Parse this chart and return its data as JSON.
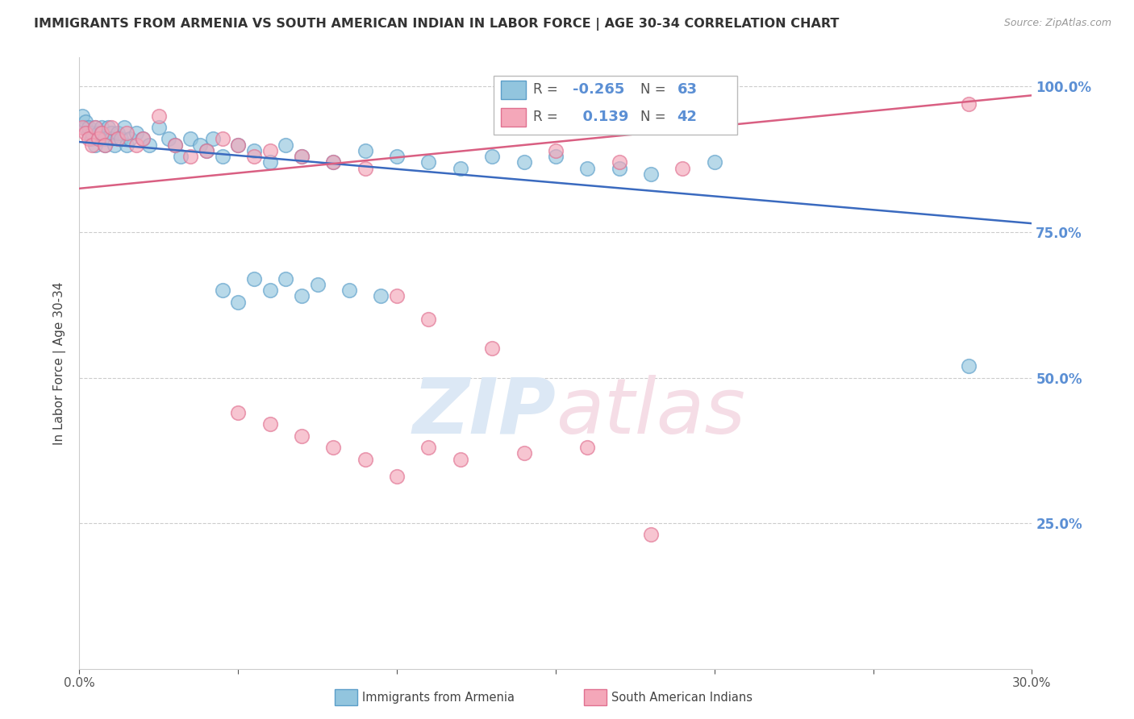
{
  "title": "IMMIGRANTS FROM ARMENIA VS SOUTH AMERICAN INDIAN IN LABOR FORCE | AGE 30-34 CORRELATION CHART",
  "source": "Source: ZipAtlas.com",
  "ylabel": "In Labor Force | Age 30-34",
  "xlim": [
    0.0,
    0.3
  ],
  "ylim": [
    0.0,
    1.05
  ],
  "xtick_positions": [
    0.0,
    0.05,
    0.1,
    0.15,
    0.2,
    0.25,
    0.3
  ],
  "xticklabels": [
    "0.0%",
    "",
    "",
    "",
    "",
    "",
    "30.0%"
  ],
  "ytick_positions": [
    0.25,
    0.5,
    0.75,
    1.0
  ],
  "ytick_labels": [
    "25.0%",
    "50.0%",
    "75.0%",
    "100.0%"
  ],
  "armenia_color": "#92c5de",
  "armenia_edge": "#5b9ec9",
  "pink_color": "#f4a7b9",
  "pink_edge": "#e07090",
  "blue_line_color": "#3a6abf",
  "pink_line_color": "#d95f82",
  "grid_color": "#cccccc",
  "background": "#ffffff",
  "ytick_color": "#5b8fd4",
  "armenia_x": [
    0.001,
    0.002,
    0.002,
    0.003,
    0.003,
    0.004,
    0.004,
    0.005,
    0.005,
    0.006,
    0.006,
    0.007,
    0.007,
    0.008,
    0.008,
    0.009,
    0.01,
    0.01,
    0.011,
    0.012,
    0.013,
    0.014,
    0.015,
    0.016,
    0.018,
    0.02,
    0.022,
    0.025,
    0.028,
    0.03,
    0.032,
    0.035,
    0.038,
    0.04,
    0.042,
    0.045,
    0.05,
    0.055,
    0.06,
    0.065,
    0.07,
    0.08,
    0.09,
    0.1,
    0.11,
    0.12,
    0.13,
    0.14,
    0.15,
    0.16,
    0.045,
    0.05,
    0.055,
    0.06,
    0.065,
    0.07,
    0.075,
    0.085,
    0.095,
    0.17,
    0.18,
    0.28,
    0.2
  ],
  "armenia_y": [
    0.95,
    0.93,
    0.94,
    0.92,
    0.93,
    0.91,
    0.92,
    0.93,
    0.9,
    0.92,
    0.91,
    0.93,
    0.92,
    0.91,
    0.9,
    0.93,
    0.92,
    0.91,
    0.9,
    0.92,
    0.91,
    0.93,
    0.9,
    0.91,
    0.92,
    0.91,
    0.9,
    0.93,
    0.91,
    0.9,
    0.88,
    0.91,
    0.9,
    0.89,
    0.91,
    0.88,
    0.9,
    0.89,
    0.87,
    0.9,
    0.88,
    0.87,
    0.89,
    0.88,
    0.87,
    0.86,
    0.88,
    0.87,
    0.88,
    0.86,
    0.65,
    0.63,
    0.67,
    0.65,
    0.67,
    0.64,
    0.66,
    0.65,
    0.64,
    0.86,
    0.85,
    0.52,
    0.87
  ],
  "pink_x": [
    0.001,
    0.002,
    0.003,
    0.004,
    0.005,
    0.006,
    0.007,
    0.008,
    0.01,
    0.012,
    0.015,
    0.018,
    0.02,
    0.025,
    0.03,
    0.035,
    0.04,
    0.045,
    0.05,
    0.055,
    0.06,
    0.07,
    0.08,
    0.09,
    0.1,
    0.11,
    0.13,
    0.15,
    0.17,
    0.19,
    0.05,
    0.06,
    0.07,
    0.08,
    0.09,
    0.1,
    0.11,
    0.12,
    0.14,
    0.16,
    0.18,
    0.28
  ],
  "pink_y": [
    0.93,
    0.92,
    0.91,
    0.9,
    0.93,
    0.91,
    0.92,
    0.9,
    0.93,
    0.91,
    0.92,
    0.9,
    0.91,
    0.95,
    0.9,
    0.88,
    0.89,
    0.91,
    0.9,
    0.88,
    0.89,
    0.88,
    0.87,
    0.86,
    0.64,
    0.6,
    0.55,
    0.89,
    0.87,
    0.86,
    0.44,
    0.42,
    0.4,
    0.38,
    0.36,
    0.33,
    0.38,
    0.36,
    0.37,
    0.38,
    0.23,
    0.97
  ],
  "blue_line_x0": 0.0,
  "blue_line_y0": 0.905,
  "blue_line_x1": 0.3,
  "blue_line_y1": 0.765,
  "pink_line_x0": 0.0,
  "pink_line_y0": 0.825,
  "pink_line_x1": 0.3,
  "pink_line_y1": 0.985
}
